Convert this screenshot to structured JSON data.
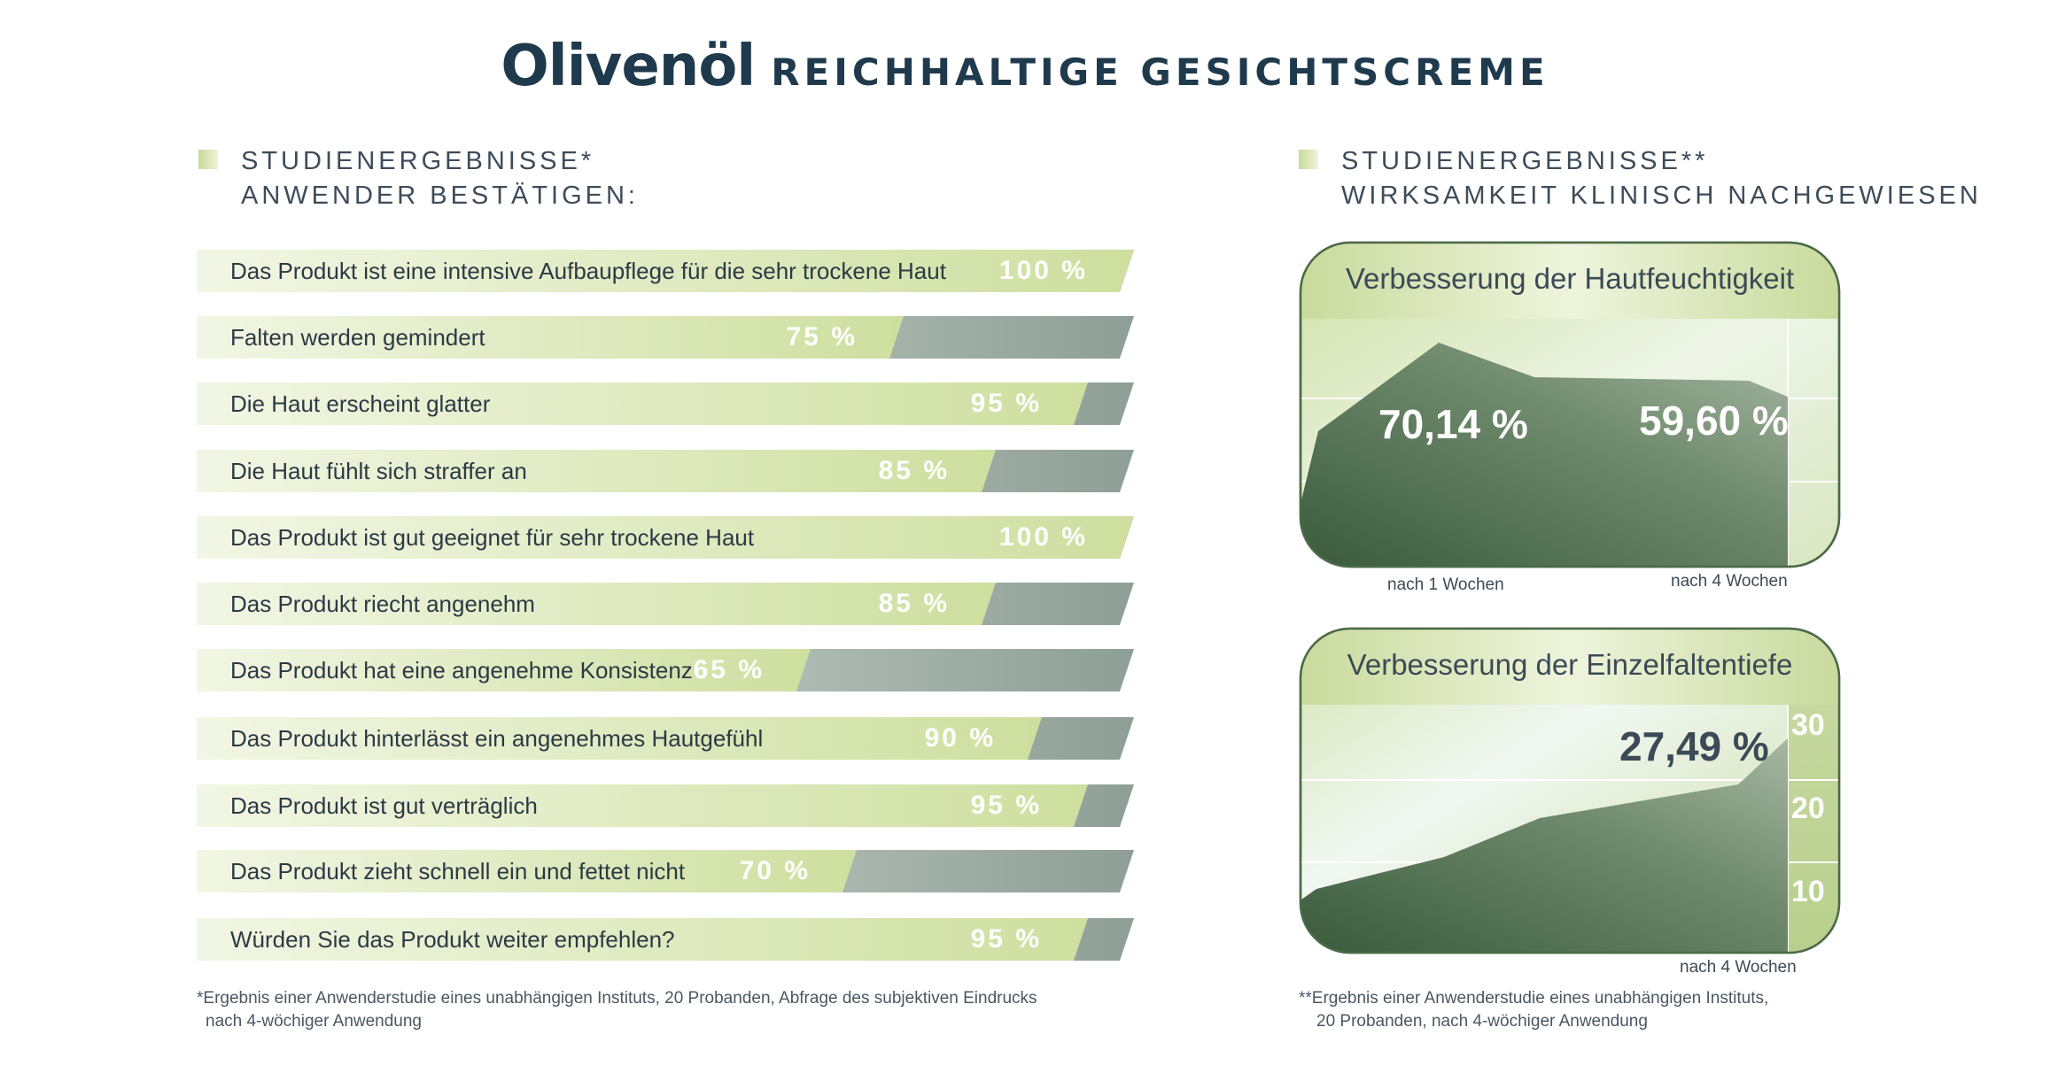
{
  "header": {
    "title_main": "Olivenöl",
    "title_sub": "REICHHALTIGE GESICHTSCREME"
  },
  "left_section": {
    "heading_line1": "STUDIENERGEBNISSE*",
    "heading_line2": "ANWENDER BESTÄTIGEN:",
    "footnote_line1": "*Ergebnis einer Anwenderstudie eines unabhängigen Instituts, 20 Probanden, Abfrage des subjektiven Eindrucks",
    "footnote_line2": "nach 4-wöchiger Anwendung"
  },
  "right_section": {
    "heading_line1": "STUDIENERGEBNISSE**",
    "heading_line2": "WIRKSAMKEIT KLINISCH NACHGEWIESEN",
    "footnote_line1": "**Ergebnis einer Anwenderstudie eines unabhängigen Instituts,",
    "footnote_line2": "20 Probanden, nach 4-wöchiger Anwendung"
  },
  "colors": {
    "title": "#1f3a4d",
    "bar_green_light": "#f2f6e4",
    "bar_green": "#cedf9f",
    "bar_gray": "#8e9f95",
    "area_dark": "#3f5e40",
    "area_light": "#9fb19c"
  },
  "chart_data": [
    {
      "type": "bar",
      "orientation": "horizontal",
      "categories": [
        "Das Produkt ist eine intensive Aufbaupflege für die sehr trockene Haut",
        "Falten werden gemindert",
        "Die Haut erscheint glatter",
        "Die Haut fühlt sich straffer an",
        "Das Produkt ist gut geeignet für sehr trockene Haut",
        "Das Produkt riecht angenehm",
        "Das Produkt hat eine angenehme Konsistenz",
        "Das Produkt hinterlässt ein angenehmes Hautgefühl",
        "Das Produkt ist gut verträglich",
        "Das Produkt zieht schnell ein und fettet nicht",
        "Würden Sie das Produkt weiter empfehlen?"
      ],
      "values": [
        100,
        75,
        95,
        85,
        100,
        85,
        65,
        90,
        95,
        70,
        95
      ],
      "value_labels": [
        "100 %",
        "75 %",
        "95 %",
        "85 %",
        "100 %",
        "85 %",
        "65 %",
        "90 %",
        "95 %",
        "70 %",
        "95 %"
      ],
      "unit": "%",
      "xlim": [
        0,
        100
      ]
    },
    {
      "type": "area",
      "title": "Verbesserung der Hautfeuchtigkeit",
      "x_labels": [
        "nach 1 Wochen",
        "nach 4 Wochen"
      ],
      "annotations": [
        "70,14 %",
        "59,60 %"
      ],
      "grid": true
    },
    {
      "type": "area",
      "title": "Verbesserung der Einzelfaltentiefe",
      "y_tick_labels": [
        "30",
        "20",
        "10"
      ],
      "yticks": [
        30,
        20,
        10
      ],
      "x_labels": [
        "nach 4 Wochen"
      ],
      "annotations": [
        "27,49 %"
      ],
      "grid": true
    }
  ]
}
